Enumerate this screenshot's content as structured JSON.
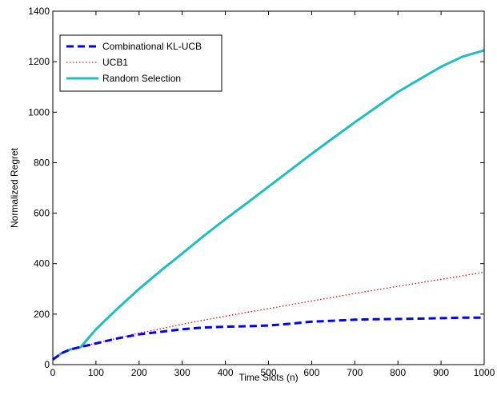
{
  "chart_data": {
    "type": "line",
    "title": "",
    "xlabel": "Time Slots (n)",
    "ylabel": "Normalized Regret",
    "xlim": [
      0,
      1000
    ],
    "ylim": [
      0,
      1400
    ],
    "xticks": [
      0,
      100,
      200,
      300,
      400,
      500,
      600,
      700,
      800,
      900,
      1000
    ],
    "yticks": [
      0,
      200,
      400,
      600,
      800,
      1000,
      1200,
      1400
    ],
    "grid": false,
    "legend_position": "top-left",
    "series": [
      {
        "name": "Combinational KL-UCB",
        "color": "#0000ff",
        "style": "dashed",
        "x": [
          0,
          20,
          40,
          65,
          100,
          150,
          200,
          250,
          300,
          350,
          400,
          450,
          500,
          550,
          600,
          650,
          700,
          750,
          800,
          850,
          900,
          950,
          1000
        ],
        "y": [
          20,
          45,
          60,
          70,
          84,
          104,
          120,
          130,
          140,
          147,
          150,
          152,
          155,
          162,
          170,
          174,
          178,
          180,
          181,
          182,
          184,
          186,
          186
        ]
      },
      {
        "name": "UCB1",
        "color": "#ff0000",
        "style": "dotted",
        "x": [
          0,
          20,
          40,
          65,
          100,
          150,
          200,
          250,
          300,
          350,
          400,
          450,
          500,
          550,
          600,
          650,
          700,
          750,
          800,
          850,
          900,
          950,
          1000
        ],
        "y": [
          20,
          45,
          60,
          70,
          85,
          105,
          125,
          142,
          160,
          176,
          192,
          207,
          222,
          237,
          252,
          267,
          282,
          296,
          310,
          324,
          338,
          352,
          366
        ]
      },
      {
        "name": "Random Selection",
        "color": "#1fbfbf",
        "style": "solid",
        "x": [
          0,
          20,
          40,
          65,
          80,
          100,
          150,
          200,
          250,
          300,
          350,
          400,
          450,
          500,
          550,
          600,
          650,
          700,
          750,
          800,
          850,
          900,
          950,
          1000
        ],
        "y": [
          20,
          45,
          60,
          70,
          100,
          140,
          222,
          300,
          372,
          440,
          510,
          576,
          640,
          705,
          770,
          835,
          898,
          960,
          1020,
          1080,
          1130,
          1180,
          1220,
          1245
        ]
      }
    ]
  }
}
